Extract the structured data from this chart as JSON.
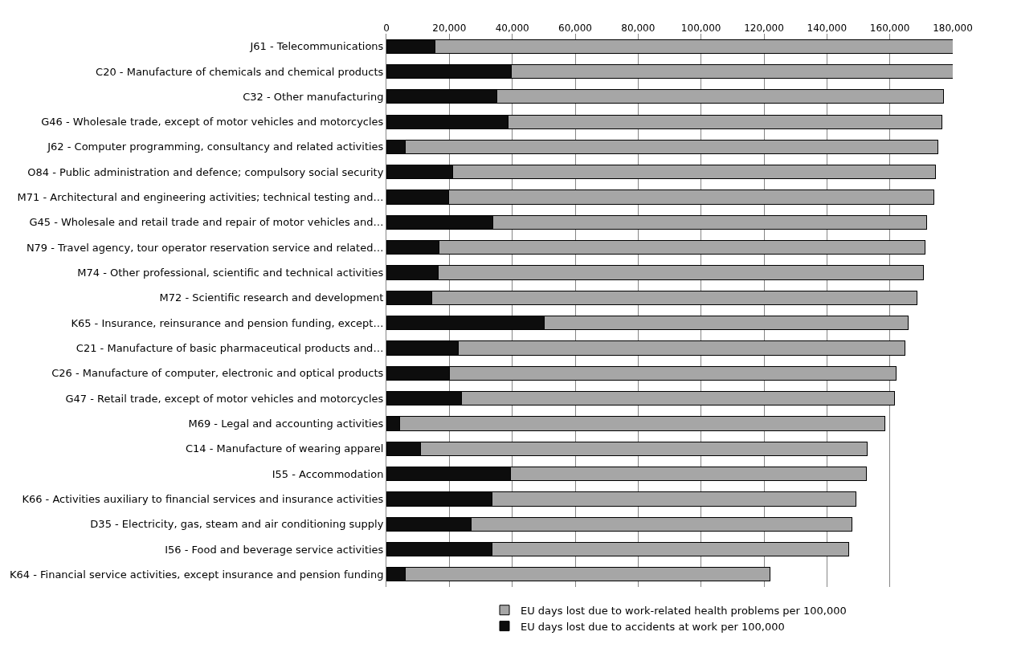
{
  "chart_data": {
    "type": "bar",
    "orientation": "horizontal",
    "stacked": true,
    "categories": [
      "J61 - Telecommunications",
      "C20 - Manufacture of chemicals and chemical products",
      "C32 - Other manufacturing",
      "G46 - Wholesale trade, except of motor vehicles and motorcycles",
      "J62 - Computer programming, consultancy and related activities",
      "O84 - Public administration and defence; compulsory social security",
      "M71 - Architectural and engineering activities; technical testing and…",
      "G45 - Wholesale and retail trade and repair of motor vehicles and…",
      "N79 - Travel agency, tour operator reservation service and related…",
      "M74 - Other professional, scientific and technical activities",
      "M72 - Scientific research and development",
      "K65 - Insurance, reinsurance and pension funding, except…",
      "C21 - Manufacture of basic pharmaceutical products and…",
      "C26 - Manufacture of computer, electronic and optical products",
      "G47 - Retail trade, except of motor vehicles and motorcycles",
      "M69 - Legal and accounting activities",
      "C14 - Manufacture of wearing apparel",
      "I55 - Accommodation",
      "K66 - Activities auxiliary to financial services and insurance activities",
      "D35 - Electricity, gas, steam and air conditioning supply",
      "I56 - Food and beverage service activities",
      "K64 - Financial service activities, except insurance and pension funding"
    ],
    "series": [
      {
        "name": "EU days lost due to accidents at work per 100,000",
        "color": "#0d0d0d",
        "values": [
          15500,
          39600,
          35100,
          38700,
          6000,
          21000,
          19700,
          33900,
          16800,
          16400,
          14500,
          50100,
          22900,
          20100,
          23800,
          4100,
          10900,
          39500,
          33600,
          26900,
          33600,
          6100
        ]
      },
      {
        "name": "EU days lost due to work-related health problems per 100,000",
        "color": "#a6a6a6",
        "values": [
          164500,
          140400,
          141900,
          137900,
          169200,
          153400,
          154200,
          137700,
          154300,
          154400,
          154100,
          115800,
          142000,
          142000,
          137800,
          154400,
          141800,
          113100,
          115700,
          121100,
          113300,
          115800
        ]
      }
    ],
    "xlim": [
      0,
      180000
    ],
    "xticks": [
      {
        "value": 0,
        "label": "0"
      },
      {
        "value": 20000,
        "label": "20,000"
      },
      {
        "value": 40000,
        "label": "40,000"
      },
      {
        "value": 60000,
        "label": "60,000"
      },
      {
        "value": 80000,
        "label": "80,000"
      },
      {
        "value": 100000,
        "label": "100,000"
      },
      {
        "value": 120000,
        "label": "120,000"
      },
      {
        "value": 140000,
        "label": "140,000"
      },
      {
        "value": 160000,
        "label": "160,000"
      },
      {
        "value": 180000,
        "label": "180,000"
      }
    ],
    "grid": "x",
    "legend": "bottom"
  }
}
